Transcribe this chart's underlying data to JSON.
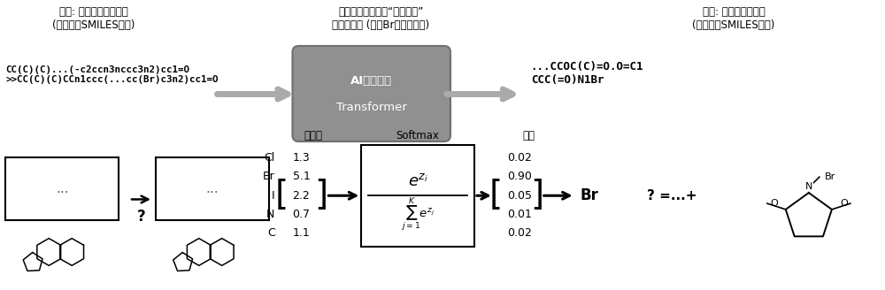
{
  "bg_color": "#ffffff",
  "title_top_left": "输入: 待预测试剂的反应\n(字符序列SMILES形式)",
  "title_top_middle": "根据最大概率生成“目标语言”\n的元素字符 (输出Br的示意例子)",
  "title_top_right": "输出: 预测的试剂组合\n(字符序列SMILES形式)",
  "smiles_input": "CC(C)(C)...(-c2ccn3nccc3n2)cc1=O\n>>CC(C)(C)CCn1ccc(...cc(Br)c3n2)cc1=O",
  "smiles_output": "...CCOC(C)=O.O=C1\nCCC(=O)N1Br",
  "ai_model_label1": "AI翻译模型",
  "ai_model_label2": "Transformer",
  "output_layer_label": "输出层",
  "softmax_label": "Softmax",
  "prob_label": "概率",
  "elements": [
    "Cl",
    "Br",
    "I",
    "N",
    "C"
  ],
  "input_values": [
    "1.3",
    "5.1",
    "2.2",
    "0.7",
    "1.1"
  ],
  "output_values": [
    "0.02",
    "0.90",
    "0.05",
    "0.01",
    "0.02"
  ],
  "result_label": "Br",
  "question_eq": "? =...+",
  "gray_box_color": "#888888",
  "arrow_color": "#999999"
}
